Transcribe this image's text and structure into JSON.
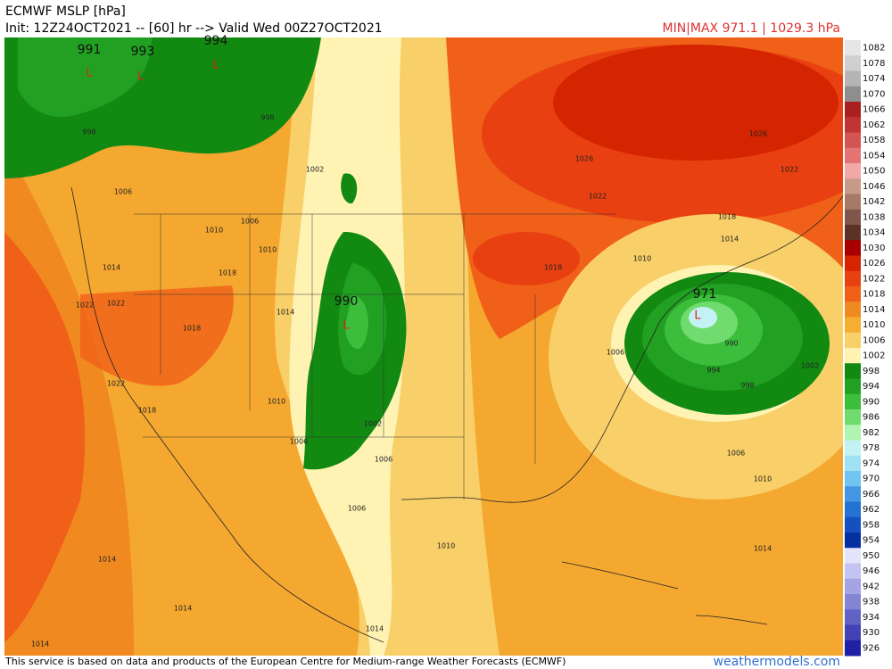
{
  "header": {
    "title": "ECMWF MSLP [hPa]",
    "init": "Init: 12Z24OCT2021 -- [60] hr --> Valid Wed 00Z27OCT2021",
    "minmax": "MIN|MAX 971.1 | 1029.3 hPa"
  },
  "footer": {
    "credit": "This service is based on data and products of the European Centre for Medium-range Weather Forecasts (ECMWF)",
    "site": "weathermodels.com"
  },
  "lows": [
    {
      "marker": "L",
      "value": "991"
    },
    {
      "marker": "L",
      "value": "993"
    },
    {
      "marker": "L",
      "value": "994"
    },
    {
      "marker": "L",
      "value": "990"
    },
    {
      "marker": "L",
      "value": "971"
    }
  ],
  "contour_labels": [
    "998",
    "998",
    "1002",
    "1006",
    "1006",
    "1010",
    "1010",
    "1014",
    "1018",
    "1022",
    "1022",
    "1018",
    "1014",
    "1006",
    "1010",
    "1006",
    "1006",
    "1002",
    "1010",
    "1014",
    "1026",
    "1026",
    "1022",
    "1022",
    "1018",
    "1018",
    "1014",
    "1010",
    "1006",
    "990",
    "994",
    "998",
    "1002",
    "1006",
    "1010",
    "1014",
    "1014",
    "1014",
    "1022",
    "1018",
    "1014"
  ],
  "colorbar": [
    {
      "value": 1082,
      "color": "#e6e6e6"
    },
    {
      "value": 1078,
      "color": "#cfcfcf"
    },
    {
      "value": 1074,
      "color": "#b4b4b4"
    },
    {
      "value": 1070,
      "color": "#8e8e8e"
    },
    {
      "value": 1066,
      "color": "#a82020"
    },
    {
      "value": 1062,
      "color": "#c23434"
    },
    {
      "value": 1058,
      "color": "#d45454"
    },
    {
      "value": 1054,
      "color": "#e47474"
    },
    {
      "value": 1050,
      "color": "#f2a8a8"
    },
    {
      "value": 1046,
      "color": "#c89a88"
    },
    {
      "value": 1042,
      "color": "#a87a66"
    },
    {
      "value": 1038,
      "color": "#80564a"
    },
    {
      "value": 1034,
      "color": "#5c3226"
    },
    {
      "value": 1030,
      "color": "#a80000"
    },
    {
      "value": 1026,
      "color": "#d42400"
    },
    {
      "value": 1022,
      "color": "#e84010"
    },
    {
      "value": 1018,
      "color": "#f06018"
    },
    {
      "value": 1014,
      "color": "#f08a20"
    },
    {
      "value": 1010,
      "color": "#f5ae30"
    },
    {
      "value": 1006,
      "color": "#f8cf68"
    },
    {
      "value": 1002,
      "color": "#fff3b4"
    },
    {
      "value": 998,
      "color": "#128a12"
    },
    {
      "value": 994,
      "color": "#22a022"
    },
    {
      "value": 990,
      "color": "#3cbe3c"
    },
    {
      "value": 986,
      "color": "#70dc70"
    },
    {
      "value": 982,
      "color": "#b0f4b0"
    },
    {
      "value": 978,
      "color": "#c4f2f4"
    },
    {
      "value": 974,
      "color": "#a0e2f4"
    },
    {
      "value": 970,
      "color": "#70c4f2"
    },
    {
      "value": 966,
      "color": "#4496e4"
    },
    {
      "value": 962,
      "color": "#2472d4"
    },
    {
      "value": 958,
      "color": "#1450c0"
    },
    {
      "value": 954,
      "color": "#0430a0"
    },
    {
      "value": 950,
      "color": "#e4e4fa"
    },
    {
      "value": 946,
      "color": "#c4c4f2"
    },
    {
      "value": 942,
      "color": "#a4a4e4"
    },
    {
      "value": 938,
      "color": "#8484d4"
    },
    {
      "value": 934,
      "color": "#6262c4"
    },
    {
      "value": 930,
      "color": "#4242b4"
    },
    {
      "value": 926,
      "color": "#2020a4"
    }
  ]
}
